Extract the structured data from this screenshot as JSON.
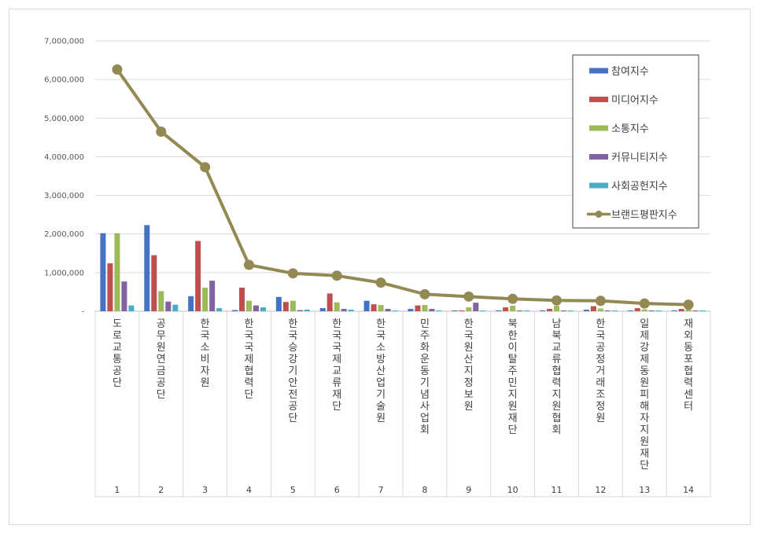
{
  "chart_data": {
    "type": "bar",
    "title": "",
    "xlabel": "",
    "ylabel": "",
    "ylim": [
      0,
      7000000
    ],
    "yticks": [
      {
        "value": 0,
        "label": "-"
      },
      {
        "value": 1000000,
        "label": "1,000,000"
      },
      {
        "value": 2000000,
        "label": "2,000,000"
      },
      {
        "value": 3000000,
        "label": "3,000,000"
      },
      {
        "value": 4000000,
        "label": "4,000,000"
      },
      {
        "value": 5000000,
        "label": "5,000,000"
      },
      {
        "value": 6000000,
        "label": "6,000,000"
      },
      {
        "value": 7000000,
        "label": "7,000,000"
      }
    ],
    "grid": true,
    "legend_position": "top-right",
    "categories": [
      {
        "name": "도로교통공단",
        "number": "1"
      },
      {
        "name": "공무원연금공단",
        "number": "2"
      },
      {
        "name": "한국소비자원",
        "number": "3"
      },
      {
        "name": "한국국제협력단",
        "number": "4"
      },
      {
        "name": "한국승강기안전공단",
        "number": "5"
      },
      {
        "name": "한국국제교류재단",
        "number": "6"
      },
      {
        "name": "한국소방산업기술원",
        "number": "7"
      },
      {
        "name": "민주화운동기념사업회",
        "number": "8"
      },
      {
        "name": "한국원산지정보원",
        "number": "9"
      },
      {
        "name": "북한이탈주민지원재단",
        "number": "10"
      },
      {
        "name": "남북교류협력지원협회",
        "number": "11"
      },
      {
        "name": "한국공정거래조정원",
        "number": "12"
      },
      {
        "name": "일제강제동원피해자지원재단",
        "number": "13"
      },
      {
        "name": "재외동포협력센터",
        "number": "14"
      }
    ],
    "series": [
      {
        "name": "참여지수",
        "kind": "bar",
        "color": "#4472C4",
        "values": [
          2020000,
          2230000,
          390000,
          30000,
          370000,
          80000,
          270000,
          60000,
          20000,
          10000,
          20000,
          40000,
          10000,
          20000
        ]
      },
      {
        "name": "미디어지수",
        "kind": "bar",
        "color": "#C0504D",
        "values": [
          1240000,
          1450000,
          1820000,
          610000,
          240000,
          460000,
          180000,
          150000,
          20000,
          100000,
          60000,
          130000,
          80000,
          60000
        ]
      },
      {
        "name": "소통지수",
        "kind": "bar",
        "color": "#9BBB59",
        "values": [
          2020000,
          520000,
          610000,
          270000,
          270000,
          230000,
          160000,
          160000,
          100000,
          140000,
          140000,
          70000,
          50000,
          60000
        ]
      },
      {
        "name": "커뮤니티지수",
        "kind": "bar",
        "color": "#8064A2",
        "values": [
          770000,
          250000,
          790000,
          150000,
          30000,
          60000,
          60000,
          60000,
          220000,
          20000,
          20000,
          10000,
          20000,
          20000
        ]
      },
      {
        "name": "사회공헌지수",
        "kind": "bar",
        "color": "#4BACC6",
        "values": [
          150000,
          170000,
          80000,
          100000,
          40000,
          40000,
          10000,
          10000,
          10000,
          10000,
          10000,
          10000,
          10000,
          10000
        ]
      },
      {
        "name": "브랜드평판지수",
        "kind": "line",
        "color": "#938953",
        "values": [
          6260000,
          4650000,
          3730000,
          1200000,
          980000,
          920000,
          740000,
          440000,
          380000,
          320000,
          280000,
          270000,
          200000,
          170000
        ]
      }
    ]
  }
}
